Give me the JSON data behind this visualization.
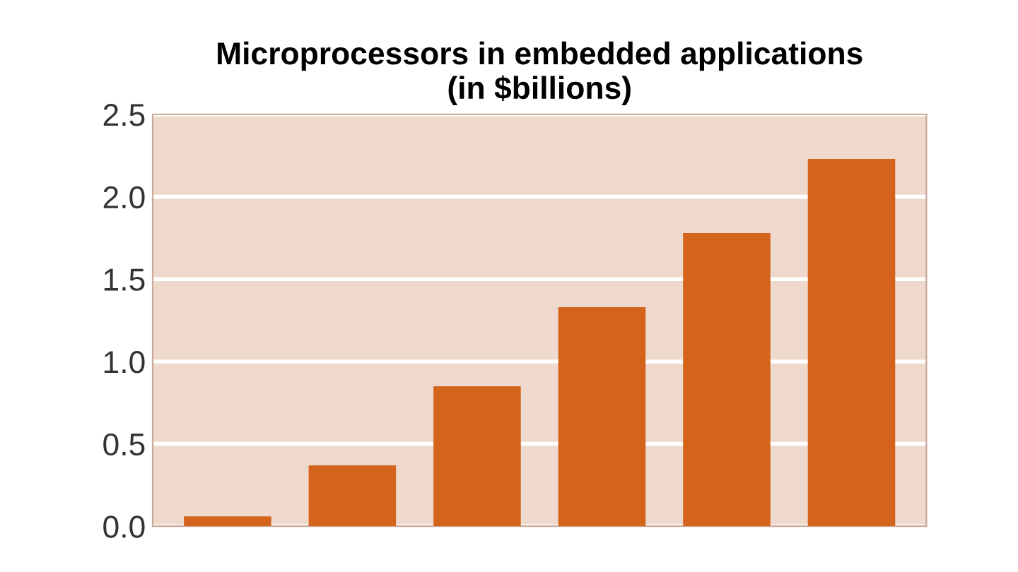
{
  "chart_data": {
    "type": "bar",
    "title": "Microprocessors in embedded applications\n(in $billions)",
    "categories": [
      null,
      null,
      null,
      null,
      null,
      null
    ],
    "values": [
      0.06,
      0.37,
      0.85,
      1.33,
      1.78,
      2.23
    ],
    "color": "#d4641c",
    "ylim": [
      0,
      2.5
    ],
    "yticks": [
      {
        "value": 0,
        "label": "0.0"
      },
      {
        "value": 0.5,
        "label": "0.5"
      },
      {
        "value": 1,
        "label": "1.0"
      },
      {
        "value": 1.5,
        "label": "1.5"
      },
      {
        "value": 2,
        "label": "2.0"
      },
      {
        "value": 2.5,
        "label": "2.5"
      }
    ],
    "grid": "y"
  }
}
